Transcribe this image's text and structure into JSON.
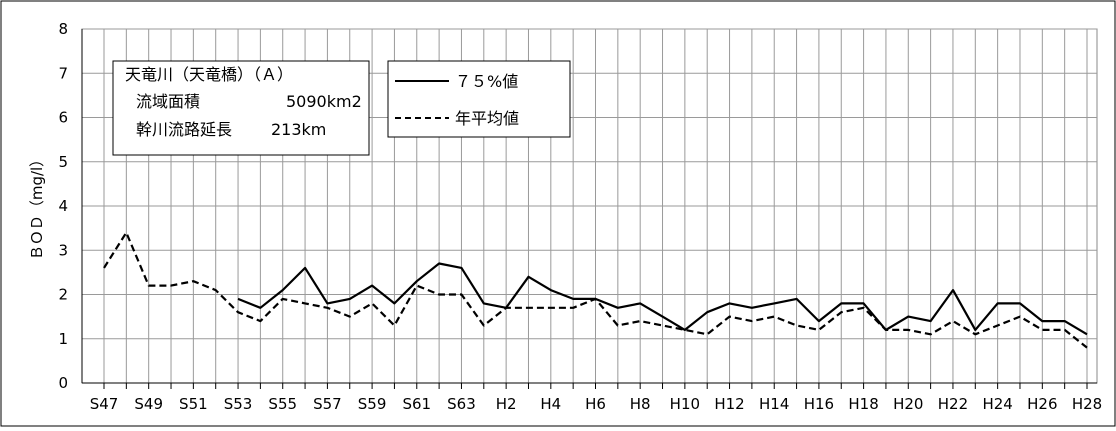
{
  "chart_data": {
    "type": "line",
    "title": "",
    "xlabel": "",
    "ylabel": "ＢＯＤ（mg/l）",
    "ylim": [
      0,
      8
    ],
    "yticks": [
      0,
      1,
      2,
      3,
      4,
      5,
      6,
      7,
      8
    ],
    "grid": true,
    "legend_position": "top-left (inside plot, to the right of the info box)",
    "x": [
      "S47",
      "S48",
      "S49",
      "S50",
      "S51",
      "S52",
      "S53",
      "S54",
      "S55",
      "S56",
      "S57",
      "S58",
      "S59",
      "S60",
      "S61",
      "S62",
      "S63",
      "H1",
      "H2",
      "H3",
      "H4",
      "H5",
      "H6",
      "H7",
      "H8",
      "H9",
      "H10",
      "H11",
      "H12",
      "H13",
      "H14",
      "H15",
      "H16",
      "H17",
      "H18",
      "H19",
      "H20",
      "H21",
      "H22",
      "H23",
      "H24",
      "H25",
      "H26",
      "H27",
      "H28"
    ],
    "xtick_labels": [
      "S47",
      "S49",
      "S51",
      "S53",
      "S55",
      "S57",
      "S59",
      "S61",
      "S63",
      "H2",
      "H4",
      "H6",
      "H8",
      "H10",
      "H12",
      "H14",
      "H16",
      "H18",
      "H20",
      "H22",
      "H24",
      "H26",
      "H28"
    ],
    "series": [
      {
        "name": "７５%値",
        "style": "solid",
        "color": "#000000",
        "values": [
          null,
          null,
          null,
          null,
          null,
          null,
          1.9,
          1.7,
          2.1,
          2.6,
          1.8,
          1.9,
          2.2,
          1.8,
          2.3,
          2.7,
          2.6,
          1.8,
          1.7,
          2.4,
          2.1,
          1.9,
          1.9,
          1.7,
          1.8,
          1.5,
          1.2,
          1.6,
          1.8,
          1.7,
          1.8,
          1.9,
          1.4,
          1.8,
          1.8,
          1.2,
          1.5,
          1.4,
          2.1,
          1.2,
          1.8,
          1.8,
          1.4,
          1.4,
          1.1
        ]
      },
      {
        "name": "年平均値",
        "style": "dashed",
        "color": "#000000",
        "values": [
          2.6,
          3.4,
          2.2,
          2.2,
          2.3,
          2.1,
          1.6,
          1.4,
          1.9,
          1.8,
          1.7,
          1.5,
          1.8,
          1.3,
          2.2,
          2.0,
          2.0,
          1.3,
          1.7,
          1.7,
          1.7,
          1.7,
          1.9,
          1.3,
          1.4,
          1.3,
          1.2,
          1.1,
          1.5,
          1.4,
          1.5,
          1.3,
          1.2,
          1.6,
          1.7,
          1.2,
          1.2,
          1.1,
          1.4,
          1.1,
          1.3,
          1.5,
          1.2,
          1.2,
          0.8
        ]
      }
    ],
    "info_box": {
      "line1": "天竜川（天竜橋）（Ａ）",
      "line2_label": "流域面積",
      "line2_value": "5090km2",
      "line3_label": "幹川流路延長",
      "line3_value": "213km"
    }
  }
}
